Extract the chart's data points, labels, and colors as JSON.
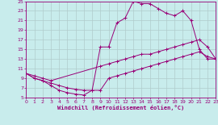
{
  "xlabel": "Windchill (Refroidissement éolien,°C)",
  "bg_color": "#c8ecec",
  "grid_color": "#b0cccc",
  "line_color": "#990077",
  "xlim": [
    0,
    23
  ],
  "ylim": [
    5,
    25
  ],
  "xticks": [
    0,
    1,
    2,
    3,
    4,
    5,
    6,
    7,
    8,
    9,
    10,
    11,
    12,
    13,
    14,
    15,
    16,
    17,
    18,
    19,
    20,
    21,
    22,
    23
  ],
  "yticks": [
    5,
    7,
    9,
    11,
    13,
    15,
    17,
    19,
    21,
    23,
    25
  ],
  "curve1_x": [
    0,
    1,
    2,
    3,
    4,
    5,
    6,
    7,
    8,
    9,
    10,
    11,
    12,
    13,
    14,
    15,
    16,
    17,
    18,
    19,
    20,
    21,
    22,
    23
  ],
  "curve1_y": [
    10,
    9,
    8.5,
    7.5,
    6.5,
    6,
    5.7,
    5.5,
    6.5,
    15.5,
    15.5,
    20.5,
    21.5,
    25,
    24.5,
    24.5,
    23.5,
    22.5,
    22,
    23,
    21,
    15,
    13,
    13
  ],
  "curve2_x": [
    0,
    1,
    2,
    3,
    9,
    10,
    11,
    12,
    13,
    14,
    15,
    16,
    17,
    18,
    19,
    20,
    21,
    22,
    23
  ],
  "curve2_y": [
    10,
    9.5,
    9,
    8.5,
    11.5,
    12,
    12.5,
    13,
    13.5,
    14,
    14,
    14.5,
    15,
    15.5,
    16,
    16.5,
    17,
    15.5,
    13
  ],
  "curve3_x": [
    0,
    1,
    2,
    3,
    4,
    5,
    6,
    7,
    8,
    9,
    10,
    11,
    12,
    13,
    14,
    15,
    16,
    17,
    18,
    19,
    20,
    21,
    22,
    23
  ],
  "curve3_y": [
    10,
    9,
    8.5,
    8,
    7.5,
    7,
    6.7,
    6.5,
    6.5,
    6.5,
    9,
    9.5,
    10,
    10.5,
    11,
    11.5,
    12,
    12.5,
    13,
    13.5,
    14,
    14.5,
    13.5,
    13
  ]
}
